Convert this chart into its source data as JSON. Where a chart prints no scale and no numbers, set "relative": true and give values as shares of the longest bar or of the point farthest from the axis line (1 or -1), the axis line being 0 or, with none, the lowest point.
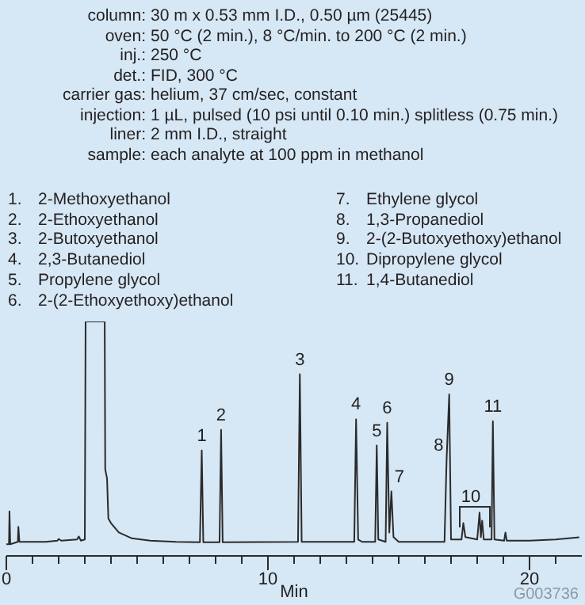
{
  "chart_data": {
    "type": "line",
    "relative": true,
    "xlabel": "Min",
    "xlim": [
      0,
      22
    ],
    "xticks": [
      0,
      {
        "value": 1,
        "label": null
      },
      {
        "value": 2,
        "label": null
      },
      {
        "value": 3,
        "label": null
      },
      {
        "value": 4,
        "label": null
      },
      {
        "value": 5,
        "label": null
      },
      {
        "value": 6,
        "label": null
      },
      {
        "value": 7,
        "label": null
      },
      {
        "value": 8,
        "label": null
      },
      {
        "value": 9,
        "label": null
      },
      10,
      {
        "value": 11,
        "label": null
      },
      {
        "value": 12,
        "label": null
      },
      {
        "value": 13,
        "label": null
      },
      {
        "value": 14,
        "label": null
      },
      {
        "value": 15,
        "label": null
      },
      {
        "value": 16,
        "label": null
      },
      {
        "value": 17,
        "label": null
      },
      {
        "value": 18,
        "label": null
      },
      {
        "value": 19,
        "label": null
      },
      20,
      {
        "value": 21,
        "label": null
      }
    ],
    "series": [
      {
        "color": "#2b2b2b",
        "x": [
          0,
          0.1,
          0.12,
          0.15,
          0.44,
          0.46,
          0.5,
          1.5,
          1.95,
          2.0,
          2.1,
          2.7,
          2.77,
          2.85,
          3.0,
          3.03,
          3.76,
          3.78,
          3.85,
          3.9,
          4.0,
          4.3,
          4.8,
          5.5,
          6.5,
          7.4,
          7.47,
          7.53,
          8.15,
          8.21,
          8.27,
          11.15,
          11.22,
          11.29,
          13.3,
          13.37,
          13.45,
          13.6,
          14.1,
          14.16,
          14.22,
          14.5,
          14.56,
          14.64,
          14.72,
          14.8,
          15.0,
          16.75,
          16.83,
          16.93,
          17.0,
          17.4,
          17.47,
          17.55,
          18.0,
          18.09,
          18.14,
          18.19,
          18.25,
          18.55,
          18.6,
          18.66,
          19.03,
          19.08,
          19.13,
          20,
          21,
          21.9
        ],
        "values": [
          0.05,
          0.05,
          0.19,
          0.05,
          0.06,
          0.124,
          0.06,
          0.06,
          0.065,
          0.072,
          0.065,
          0.07,
          0.083,
          0.065,
          0.07,
          1,
          1,
          0.37,
          0.33,
          0.16,
          0.14,
          0.1,
          0.075,
          0.065,
          0.06,
          0.058,
          0.45,
          0.058,
          0.058,
          0.538,
          0.058,
          0.06,
          0.775,
          0.06,
          0.06,
          0.583,
          0.07,
          0.06,
          0.06,
          0.471,
          0.07,
          0.06,
          0.568,
          0.1,
          0.275,
          0.08,
          0.06,
          0.06,
          0.41,
          0.689,
          0.07,
          0.07,
          0.14,
          0.08,
          0.07,
          0.185,
          0.08,
          0.15,
          0.07,
          0.07,
          0.574,
          0.07,
          0.065,
          0.1,
          0.065,
          0.065,
          0.07,
          0.079
        ]
      }
    ],
    "annotations": [
      "column: 30 m x 0.53 mm I.D., 0.50 µm (25445)",
      "oven: 50 °C (2 min.), 8 °C/min. to 200 °C (2 min.)",
      "inj.: 250 °C",
      "det.: FID, 300 °C",
      "carrier gas: helium, 37 cm/sec, constant",
      "injection: 1 µL, pulsed (10 psi until 0.10 min.) splitless (0.75 min.)",
      "liner: 2 mm I.D., straight",
      "sample: each analyte at 100 ppm in methanol",
      "1.  2-Methoxyethanol",
      "2.  2-Ethoxyethanol",
      "3.  2-Butoxyethanol",
      "4.  2,3-Butanediol",
      "5.  Propylene glycol",
      "6.  2-(2-Ethoxyethoxy)ethanol",
      "7.  Ethylene glycol",
      "8.  1,3-Propanediol",
      "9.  2-(2-Butoxyethoxy)ethanol",
      "10.  Dipropylene glycol",
      "11.  1,4-Butanediol",
      "G003736",
      "10",
      {
        "text": "1",
        "x": 7.47,
        "y": 0.45
      },
      {
        "text": "2",
        "x": 8.21,
        "y": 0.538
      },
      {
        "text": "3",
        "x": 11.22,
        "y": 0.775
      },
      {
        "text": "4",
        "x": 13.37,
        "y": 0.583
      },
      {
        "text": "5",
        "x": 14.16,
        "y": 0.471
      },
      {
        "text": "6",
        "x": 14.56,
        "y": 0.568
      },
      {
        "text": "7",
        "x": 14.72,
        "y": 0.275
      },
      {
        "text": "8",
        "x": 16.83,
        "y": 0.41
      },
      {
        "text": "9",
        "x": 16.93,
        "y": 0.689
      },
      {
        "text": "11",
        "x": 18.6,
        "y": 0.574
      }
    ]
  }
}
